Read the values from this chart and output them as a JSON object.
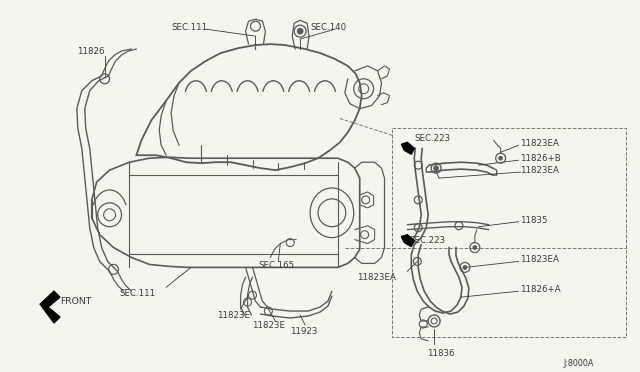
{
  "bg_color": "#f5f5f0",
  "line_color": "#5a5a5a",
  "dark_color": "#3a3a3a",
  "dashed_color": "#7a7a7a",
  "labels": {
    "sec111_top": "SEC.111",
    "sec140": "SEC.140",
    "sec111_bot": "SEC.111",
    "sec165": "SEC.165",
    "sec223_top": "SEC.223",
    "sec223_bot": "SEC.223",
    "part11826": "11826",
    "part11823ea_1": "11823EA",
    "part11826b": "11826+B",
    "part11823ea_2": "11823EA",
    "part11835": "11835",
    "part11823ea_3": "11823EA",
    "part11826a": "11826+A",
    "part11823ea_4": "11823EA",
    "part11836": "11836",
    "part11823e_1": "11823E",
    "part11823e_2": "11823E",
    "part11923": "11923",
    "front": "FRONT",
    "diagram_id": "J:8000A"
  },
  "fig_width": 6.4,
  "fig_height": 3.72,
  "dpi": 100
}
